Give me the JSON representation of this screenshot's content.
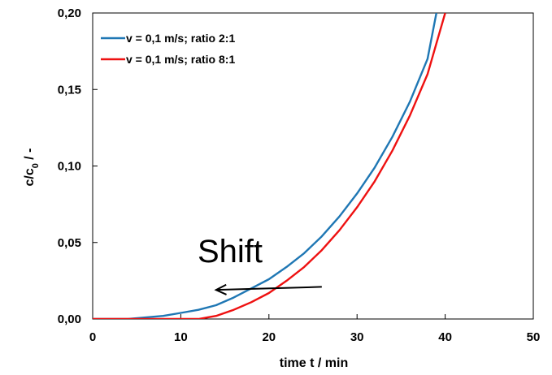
{
  "chart_data": {
    "type": "line",
    "title": "",
    "xlabel": "time t / min",
    "ylabel_main": "c/c",
    "ylabel_sub": "0",
    "ylabel_suffix": " / -",
    "xlim": [
      0,
      50
    ],
    "ylim": [
      0,
      0.2
    ],
    "x_ticks": [
      0,
      10,
      20,
      30,
      40,
      50
    ],
    "x_tick_labels": [
      "0",
      "10",
      "20",
      "30",
      "40",
      "50"
    ],
    "y_ticks": [
      0,
      0.05,
      0.1,
      0.15,
      0.2
    ],
    "y_tick_labels": [
      "0,00",
      "0,05",
      "0,10",
      "0,15",
      "0,20"
    ],
    "grid": false,
    "legend_position": "top-left",
    "series": [
      {
        "name": "v = 0,1 m/s; ratio 2:1",
        "color": "#1f77b4",
        "x": [
          0,
          4,
          6,
          8,
          10,
          12,
          14,
          16,
          18,
          20,
          22,
          24,
          26,
          28,
          30,
          32,
          34,
          36,
          38,
          39
        ],
        "y": [
          0,
          0,
          0.001,
          0.002,
          0.004,
          0.006,
          0.009,
          0.014,
          0.02,
          0.026,
          0.034,
          0.043,
          0.054,
          0.067,
          0.082,
          0.099,
          0.119,
          0.142,
          0.17,
          0.2
        ]
      },
      {
        "name": "v = 0,1 m/s; ratio 8:1",
        "color": "#ee1111",
        "x": [
          0,
          12,
          14,
          16,
          18,
          20,
          22,
          24,
          26,
          28,
          30,
          32,
          34,
          36,
          38,
          40
        ],
        "y": [
          0,
          0,
          0.002,
          0.006,
          0.011,
          0.017,
          0.025,
          0.034,
          0.045,
          0.058,
          0.073,
          0.09,
          0.11,
          0.133,
          0.16,
          0.2
        ]
      }
    ],
    "annotation": {
      "text": "Shift",
      "arrow_from": [
        26,
        0.021
      ],
      "arrow_to": [
        14,
        0.019
      ]
    }
  }
}
